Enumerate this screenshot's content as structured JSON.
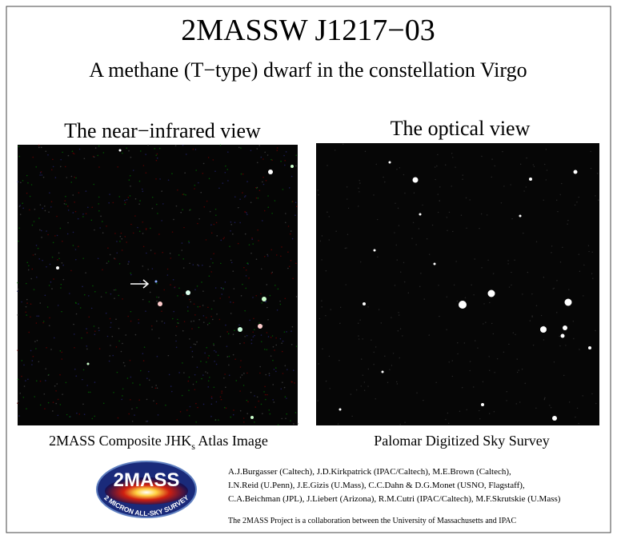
{
  "header": {
    "title": "2MASSW J1217−03",
    "subtitle": "A methane (T−type) dwarf in the constellation Virgo"
  },
  "panels": [
    {
      "heading": "The near−infrared view",
      "caption": {
        "main": "2MASS Composite JHK",
        "sub": "s",
        "rest": " Atlas Image"
      }
    },
    {
      "heading": "The optical view",
      "caption": {
        "main": "Palomar Digitized Sky Survey"
      }
    }
  ],
  "logo": {
    "name": "2MASS",
    "tagline": "2 MICRON ALL-SKY SURVEY"
  },
  "credits": {
    "authors": [
      "A.J.Burgasser (Caltech), J.D.Kirkpatrick (IPAC/Caltech), M.E.Brown (Caltech),",
      "I.N.Reid (U.Penn), J.E.Gizis (U.Mass), C.C.Dahn & D.G.Monet (USNO, Flagstaff),",
      "C.A.Beichman (JPL), J.Liebert (Arizona), R.M.Cutri (IPAC/Caltech), M.F.Skrutskie (U.Mass)"
    ],
    "note": "The 2MASS Project is a collaboration between the University of Massachusetts and IPAC"
  }
}
